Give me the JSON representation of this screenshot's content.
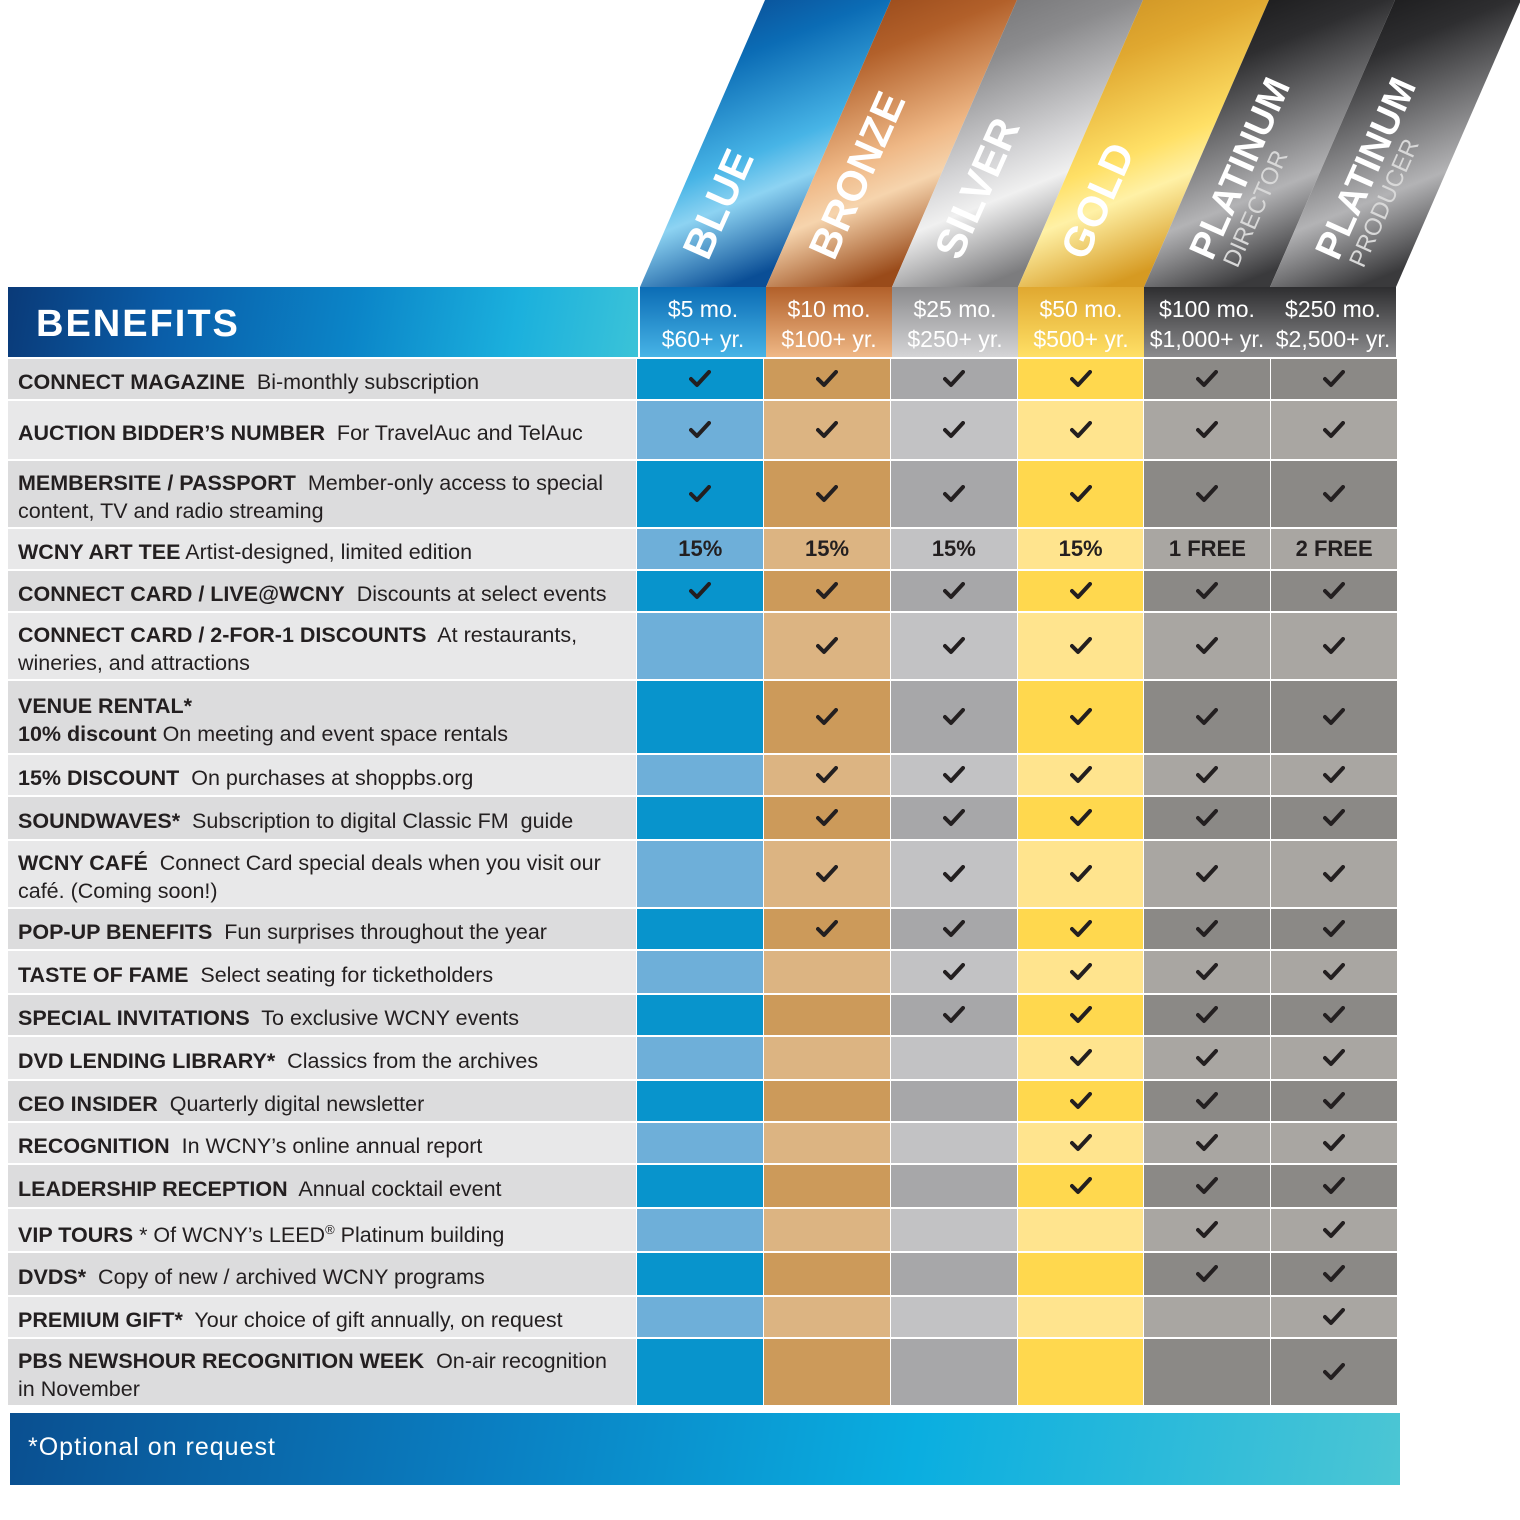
{
  "tiers": [
    {
      "name": "BLUE",
      "sub": "",
      "monthly": "$5 mo.",
      "yearly": "$60+ yr.",
      "colors": [
        "#0a3f86",
        "#0b6cb5",
        "#47b4e6",
        "#8dd3f2",
        "#0a4e96"
      ]
    },
    {
      "name": "BRONZE",
      "sub": "",
      "monthly": "$10 mo.",
      "yearly": "$100+ yr.",
      "colors": [
        "#8a3d12",
        "#b2602a",
        "#efb886",
        "#f6d4ad",
        "#9a4b1a"
      ]
    },
    {
      "name": "SILVER",
      "sub": "",
      "monthly": "$25 mo.",
      "yearly": "$250+ yr.",
      "colors": [
        "#6a6a6c",
        "#8b8b8d",
        "#d4d4d6",
        "#f0f0f0",
        "#7c7c7e"
      ]
    },
    {
      "name": "GOLD",
      "sub": "",
      "monthly": "$50 mo.",
      "yearly": "$500+ yr.",
      "colors": [
        "#c58a1f",
        "#e0a830",
        "#ffe066",
        "#fff1a6",
        "#d69a22"
      ]
    },
    {
      "name": "PLATINUM",
      "sub": "DIRECTOR",
      "monthly": "$100 mo.",
      "yearly": "$1,000+ yr.",
      "colors": [
        "#0f0f10",
        "#2e2e30",
        "#8c8c8e",
        "#b3b3b5",
        "#3a3a3c"
      ]
    },
    {
      "name": "PLATINUM",
      "sub": "PRODUCER",
      "monthly": "$250 mo.",
      "yearly": "$2,500+ yr.",
      "colors": [
        "#0f0f10",
        "#2e2e30",
        "#8c8c8e",
        "#b3b3b5",
        "#3a3a3c"
      ]
    }
  ],
  "header": {
    "title": "BENEFITS"
  },
  "rows": [
    {
      "bold": "CONNECT MAGAZINE",
      "text": "  Bi-monthly subscription",
      "cells": [
        "check",
        "check",
        "check",
        "check",
        "check",
        "check"
      ]
    },
    {
      "bold": "AUCTION BIDDER’S NUMBER",
      "text": "  For TravelAuc and TelAuc",
      "cells": [
        "check",
        "check",
        "check",
        "check",
        "check",
        "check"
      ]
    },
    {
      "bold": "MEMBERSITE / PASSPORT",
      "text": "  Member-only access to special content, TV and radio streaming",
      "cells": [
        "check",
        "check",
        "check",
        "check",
        "check",
        "check"
      ]
    },
    {
      "bold": "WCNY ART TEE",
      "text": " Artist-designed, limited edition",
      "cells": [
        "15%",
        "15%",
        "15%",
        "15%",
        "1 FREE",
        "2 FREE"
      ]
    },
    {
      "bold": "CONNECT CARD / LIVE@WCNY",
      "text": "  Discounts at select events",
      "cells": [
        "check",
        "check",
        "check",
        "check",
        "check",
        "check"
      ]
    },
    {
      "bold": "CONNECT CARD / 2-FOR-1 DISCOUNTS",
      "text": "  At restaurants, wineries, and attractions",
      "cells": [
        "",
        "check",
        "check",
        "check",
        "check",
        "check"
      ]
    },
    {
      "bold": "VENUE RENTAL*",
      "text": "",
      "bold2": "10% discount",
      "text2": " On meeting and event space rentals",
      "cells": [
        "",
        "check",
        "check",
        "check",
        "check",
        "check"
      ]
    },
    {
      "bold": "15% DISCOUNT",
      "text": "  On purchases at shoppbs.org",
      "cells": [
        "",
        "check",
        "check",
        "check",
        "check",
        "check"
      ]
    },
    {
      "bold": "SOUNDWAVES*",
      "text": "  Subscription to digital Classic FM  guide",
      "cells": [
        "",
        "check",
        "check",
        "check",
        "check",
        "check"
      ]
    },
    {
      "bold": "WCNY CAFÉ",
      "text": "  Connect Card special deals when you visit our café. (Coming soon!)",
      "cells": [
        "",
        "check",
        "check",
        "check",
        "check",
        "check"
      ]
    },
    {
      "bold": "POP-UP BENEFITS",
      "text": "  Fun surprises throughout the year",
      "cells": [
        "",
        "check",
        "check",
        "check",
        "check",
        "check"
      ]
    },
    {
      "bold": "TASTE OF FAME",
      "text": "  Select seating for ticketholders",
      "cells": [
        "",
        "",
        "check",
        "check",
        "check",
        "check"
      ]
    },
    {
      "bold": "SPECIAL INVITATIONS",
      "text": "  To exclusive WCNY events",
      "cells": [
        "",
        "",
        "check",
        "check",
        "check",
        "check"
      ]
    },
    {
      "bold": "DVD LENDING LIBRARY*",
      "text": "  Classics from the archives",
      "cells": [
        "",
        "",
        "",
        "check",
        "check",
        "check"
      ]
    },
    {
      "bold": "CEO INSIDER",
      "text": "  Quarterly digital newsletter",
      "cells": [
        "",
        "",
        "",
        "check",
        "check",
        "check"
      ]
    },
    {
      "bold": "RECOGNITION",
      "text": "  In WCNY’s online annual report",
      "cells": [
        "",
        "",
        "",
        "check",
        "check",
        "check"
      ]
    },
    {
      "bold": "LEADERSHIP RECEPTION",
      "text": "  Annual cocktail event",
      "cells": [
        "",
        "",
        "",
        "check",
        "check",
        "check"
      ]
    },
    {
      "bold": "VIP TOURS",
      "text": " * Of WCNY’s LEED",
      "sup": "®",
      "text3": " Platinum building",
      "cells": [
        "",
        "",
        "",
        "",
        "check",
        "check"
      ]
    },
    {
      "bold": "DVDS*",
      "text": "  Copy of new / archived WCNY programs",
      "cells": [
        "",
        "",
        "",
        "",
        "check",
        "check"
      ]
    },
    {
      "bold": "PREMIUM GIFT*",
      "text": "  Your choice of gift annually, on request",
      "cells": [
        "",
        "",
        "",
        "",
        "",
        "check"
      ]
    },
    {
      "bold": "PBS NEWSHOUR RECOGNITION WEEK",
      "text": "  On-air recognition in November",
      "cells": [
        "",
        "",
        "",
        "",
        "",
        "check"
      ]
    }
  ],
  "footer": {
    "note": "*Optional on request"
  }
}
